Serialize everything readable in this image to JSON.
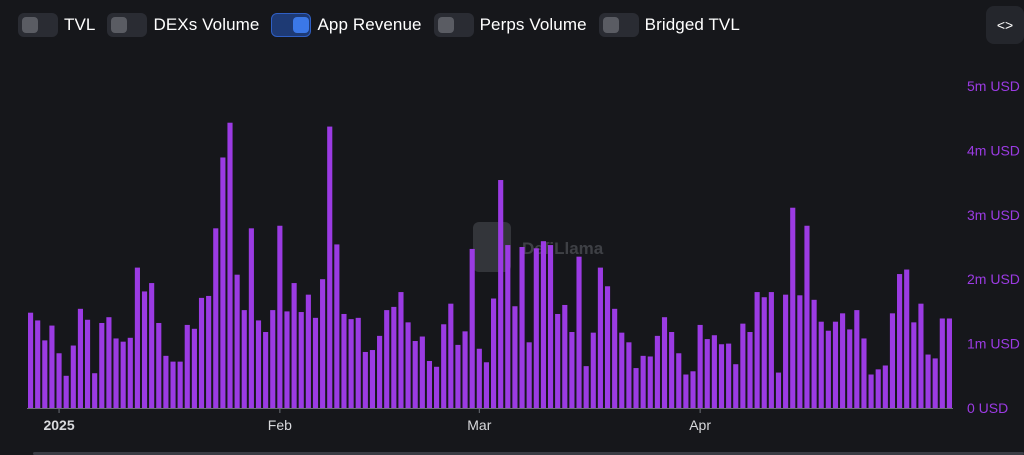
{
  "toggles": [
    {
      "label": "TVL",
      "on": false
    },
    {
      "label": "DEXs Volume",
      "on": false
    },
    {
      "label": "App Revenue",
      "on": true
    },
    {
      "label": "Perps Volume",
      "on": false
    },
    {
      "label": "Bridged TVL",
      "on": false
    }
  ],
  "embed_button": {
    "icon": "code-icon",
    "text": "<>"
  },
  "watermark": {
    "text": "DefiLlama"
  },
  "colors": {
    "bar": "#9b3be3",
    "axis_text": "#9b3be3",
    "background": "#16171b"
  },
  "chart_data": {
    "type": "bar",
    "series": [
      {
        "name": "App Revenue",
        "color": "#9b3be3"
      }
    ],
    "x_start": "2024-12-28",
    "x_ticks": [
      {
        "date": "2025-01-01",
        "label": "2025",
        "bold": true
      },
      {
        "date": "2025-02-01",
        "label": "Feb",
        "bold": false
      },
      {
        "date": "2025-03-01",
        "label": "Mar",
        "bold": false
      },
      {
        "date": "2025-04-01",
        "label": "Apr",
        "bold": false
      }
    ],
    "values": [
      1.48,
      1.36,
      1.05,
      1.28,
      0.85,
      0.5,
      0.97,
      1.54,
      1.37,
      0.54,
      1.32,
      1.41,
      1.08,
      1.03,
      1.09,
      2.18,
      1.81,
      1.94,
      1.32,
      0.81,
      0.72,
      0.72,
      1.29,
      1.23,
      1.71,
      1.74,
      2.79,
      3.89,
      4.43,
      2.07,
      1.52,
      2.79,
      1.36,
      1.18,
      1.52,
      2.83,
      1.5,
      1.94,
      1.49,
      1.76,
      1.4,
      2.0,
      4.37,
      2.54,
      1.46,
      1.38,
      1.4,
      0.87,
      0.9,
      1.12,
      1.52,
      1.57,
      1.8,
      1.33,
      1.04,
      1.11,
      0.73,
      0.64,
      1.3,
      1.62,
      0.98,
      1.19,
      2.47,
      0.92,
      0.71,
      1.7,
      3.54,
      2.53,
      1.58,
      2.5,
      1.02,
      2.48,
      2.59,
      2.53,
      1.46,
      1.6,
      1.18,
      2.35,
      0.65,
      1.17,
      2.18,
      1.89,
      1.54,
      1.17,
      1.02,
      0.62,
      0.81,
      0.8,
      1.12,
      1.41,
      1.18,
      0.85,
      0.52,
      0.57,
      1.29,
      1.07,
      1.13,
      0.99,
      1.0,
      0.68,
      1.31,
      1.18,
      1.8,
      1.72,
      1.8,
      0.55,
      1.76,
      3.11,
      1.75,
      2.83,
      1.68,
      1.34,
      1.2,
      1.34,
      1.47,
      1.22,
      1.52,
      1.08,
      0.52,
      0.6,
      0.66,
      1.47,
      2.08,
      2.15,
      1.33,
      1.62,
      0.83,
      0.77,
      1.39,
      1.39
    ],
    "y_ticks": [
      {
        "value": 0,
        "label": "0 USD"
      },
      {
        "value": 1,
        "label": "1m USD"
      },
      {
        "value": 2,
        "label": "2m USD"
      },
      {
        "value": 3,
        "label": "3m USD"
      },
      {
        "value": 4,
        "label": "4m USD"
      },
      {
        "value": 5,
        "label": "5m USD"
      }
    ],
    "ylim": [
      0,
      5
    ],
    "unit": "m USD",
    "grid": false,
    "legend": "top-left toggles"
  }
}
